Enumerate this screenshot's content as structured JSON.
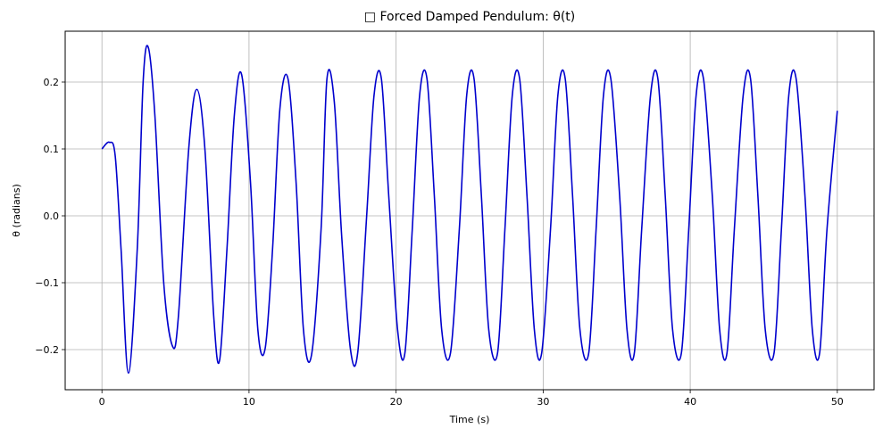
{
  "chart_data": {
    "type": "line",
    "title": "□ Forced Damped Pendulum: θ(t)",
    "xlabel": "Time (s)",
    "ylabel": "θ (radians)",
    "xlim": [
      -2.5,
      52.5
    ],
    "ylim": [
      -0.26,
      0.276
    ],
    "x_ticks": [
      0,
      10,
      20,
      30,
      40,
      50
    ],
    "x_tick_labels": [
      "0",
      "10",
      "20",
      "30",
      "40",
      "50"
    ],
    "y_ticks": [
      -0.2,
      -0.1,
      0.0,
      0.1,
      0.2
    ],
    "y_tick_labels": [
      "−0.2",
      "−0.1",
      "0.0",
      "0.1",
      "0.2"
    ],
    "grid": true,
    "line_color": "#0000cd",
    "series": [
      {
        "x": [
          0,
          0.5,
          0.9,
          1.3,
          1.8,
          2.4,
          2.8,
          3.15,
          3.6,
          4.2,
          4.8,
          5.2,
          5.9,
          6.45,
          7.0,
          7.6,
          8.0,
          8.5,
          9.0,
          9.5,
          10.1,
          10.6,
          11.1,
          11.6,
          12.1,
          12.65,
          13.2,
          13.7,
          14.25,
          14.9,
          15.3,
          15.8,
          16.3,
          16.9,
          17.4,
          18.0,
          18.5,
          19.0,
          19.5,
          20.1,
          20.6,
          21.1,
          21.6,
          22.1,
          22.6,
          23.1,
          23.7,
          24.3,
          24.8,
          25.3,
          25.8,
          26.3,
          26.9,
          27.4,
          27.9,
          28.4,
          28.9,
          29.4,
          29.9,
          30.5,
          31.0,
          31.5,
          32.0,
          32.5,
          33.1,
          33.6,
          34.1,
          34.6,
          35.2,
          35.7,
          36.2,
          36.7,
          37.3,
          37.8,
          38.3,
          38.8,
          39.4,
          39.9,
          40.4,
          40.9,
          41.5,
          42.0,
          42.5,
          43.0,
          43.6,
          44.1,
          44.6,
          45.1,
          45.7,
          46.2,
          46.7,
          47.2,
          47.8,
          48.3,
          48.8,
          49.3,
          50.0
        ],
        "y": [
          0.1,
          0.11,
          0.09,
          -0.05,
          -0.235,
          -0.05,
          0.2,
          0.252,
          0.15,
          -0.1,
          -0.195,
          -0.15,
          0.1,
          0.189,
          0.1,
          -0.15,
          -0.216,
          -0.05,
          0.15,
          0.211,
          0.05,
          -0.17,
          -0.198,
          -0.05,
          0.16,
          0.205,
          0.05,
          -0.17,
          -0.208,
          -0.02,
          0.205,
          0.17,
          -0.03,
          -0.2,
          -0.203,
          0.0,
          0.18,
          0.205,
          0.03,
          -0.17,
          -0.205,
          -0.02,
          0.18,
          0.205,
          0.03,
          -0.17,
          -0.205,
          -0.02,
          0.18,
          0.205,
          0.03,
          -0.17,
          -0.205,
          -0.02,
          0.18,
          0.205,
          0.03,
          -0.17,
          -0.205,
          -0.02,
          0.18,
          0.205,
          0.03,
          -0.17,
          -0.205,
          -0.02,
          0.18,
          0.205,
          0.03,
          -0.17,
          -0.205,
          -0.02,
          0.18,
          0.205,
          0.03,
          -0.17,
          -0.205,
          -0.02,
          0.18,
          0.205,
          0.03,
          -0.17,
          -0.205,
          -0.02,
          0.18,
          0.205,
          0.03,
          -0.17,
          -0.205,
          -0.02,
          0.18,
          0.205,
          0.03,
          -0.17,
          -0.205,
          -0.02,
          0.157
        ]
      }
    ]
  }
}
